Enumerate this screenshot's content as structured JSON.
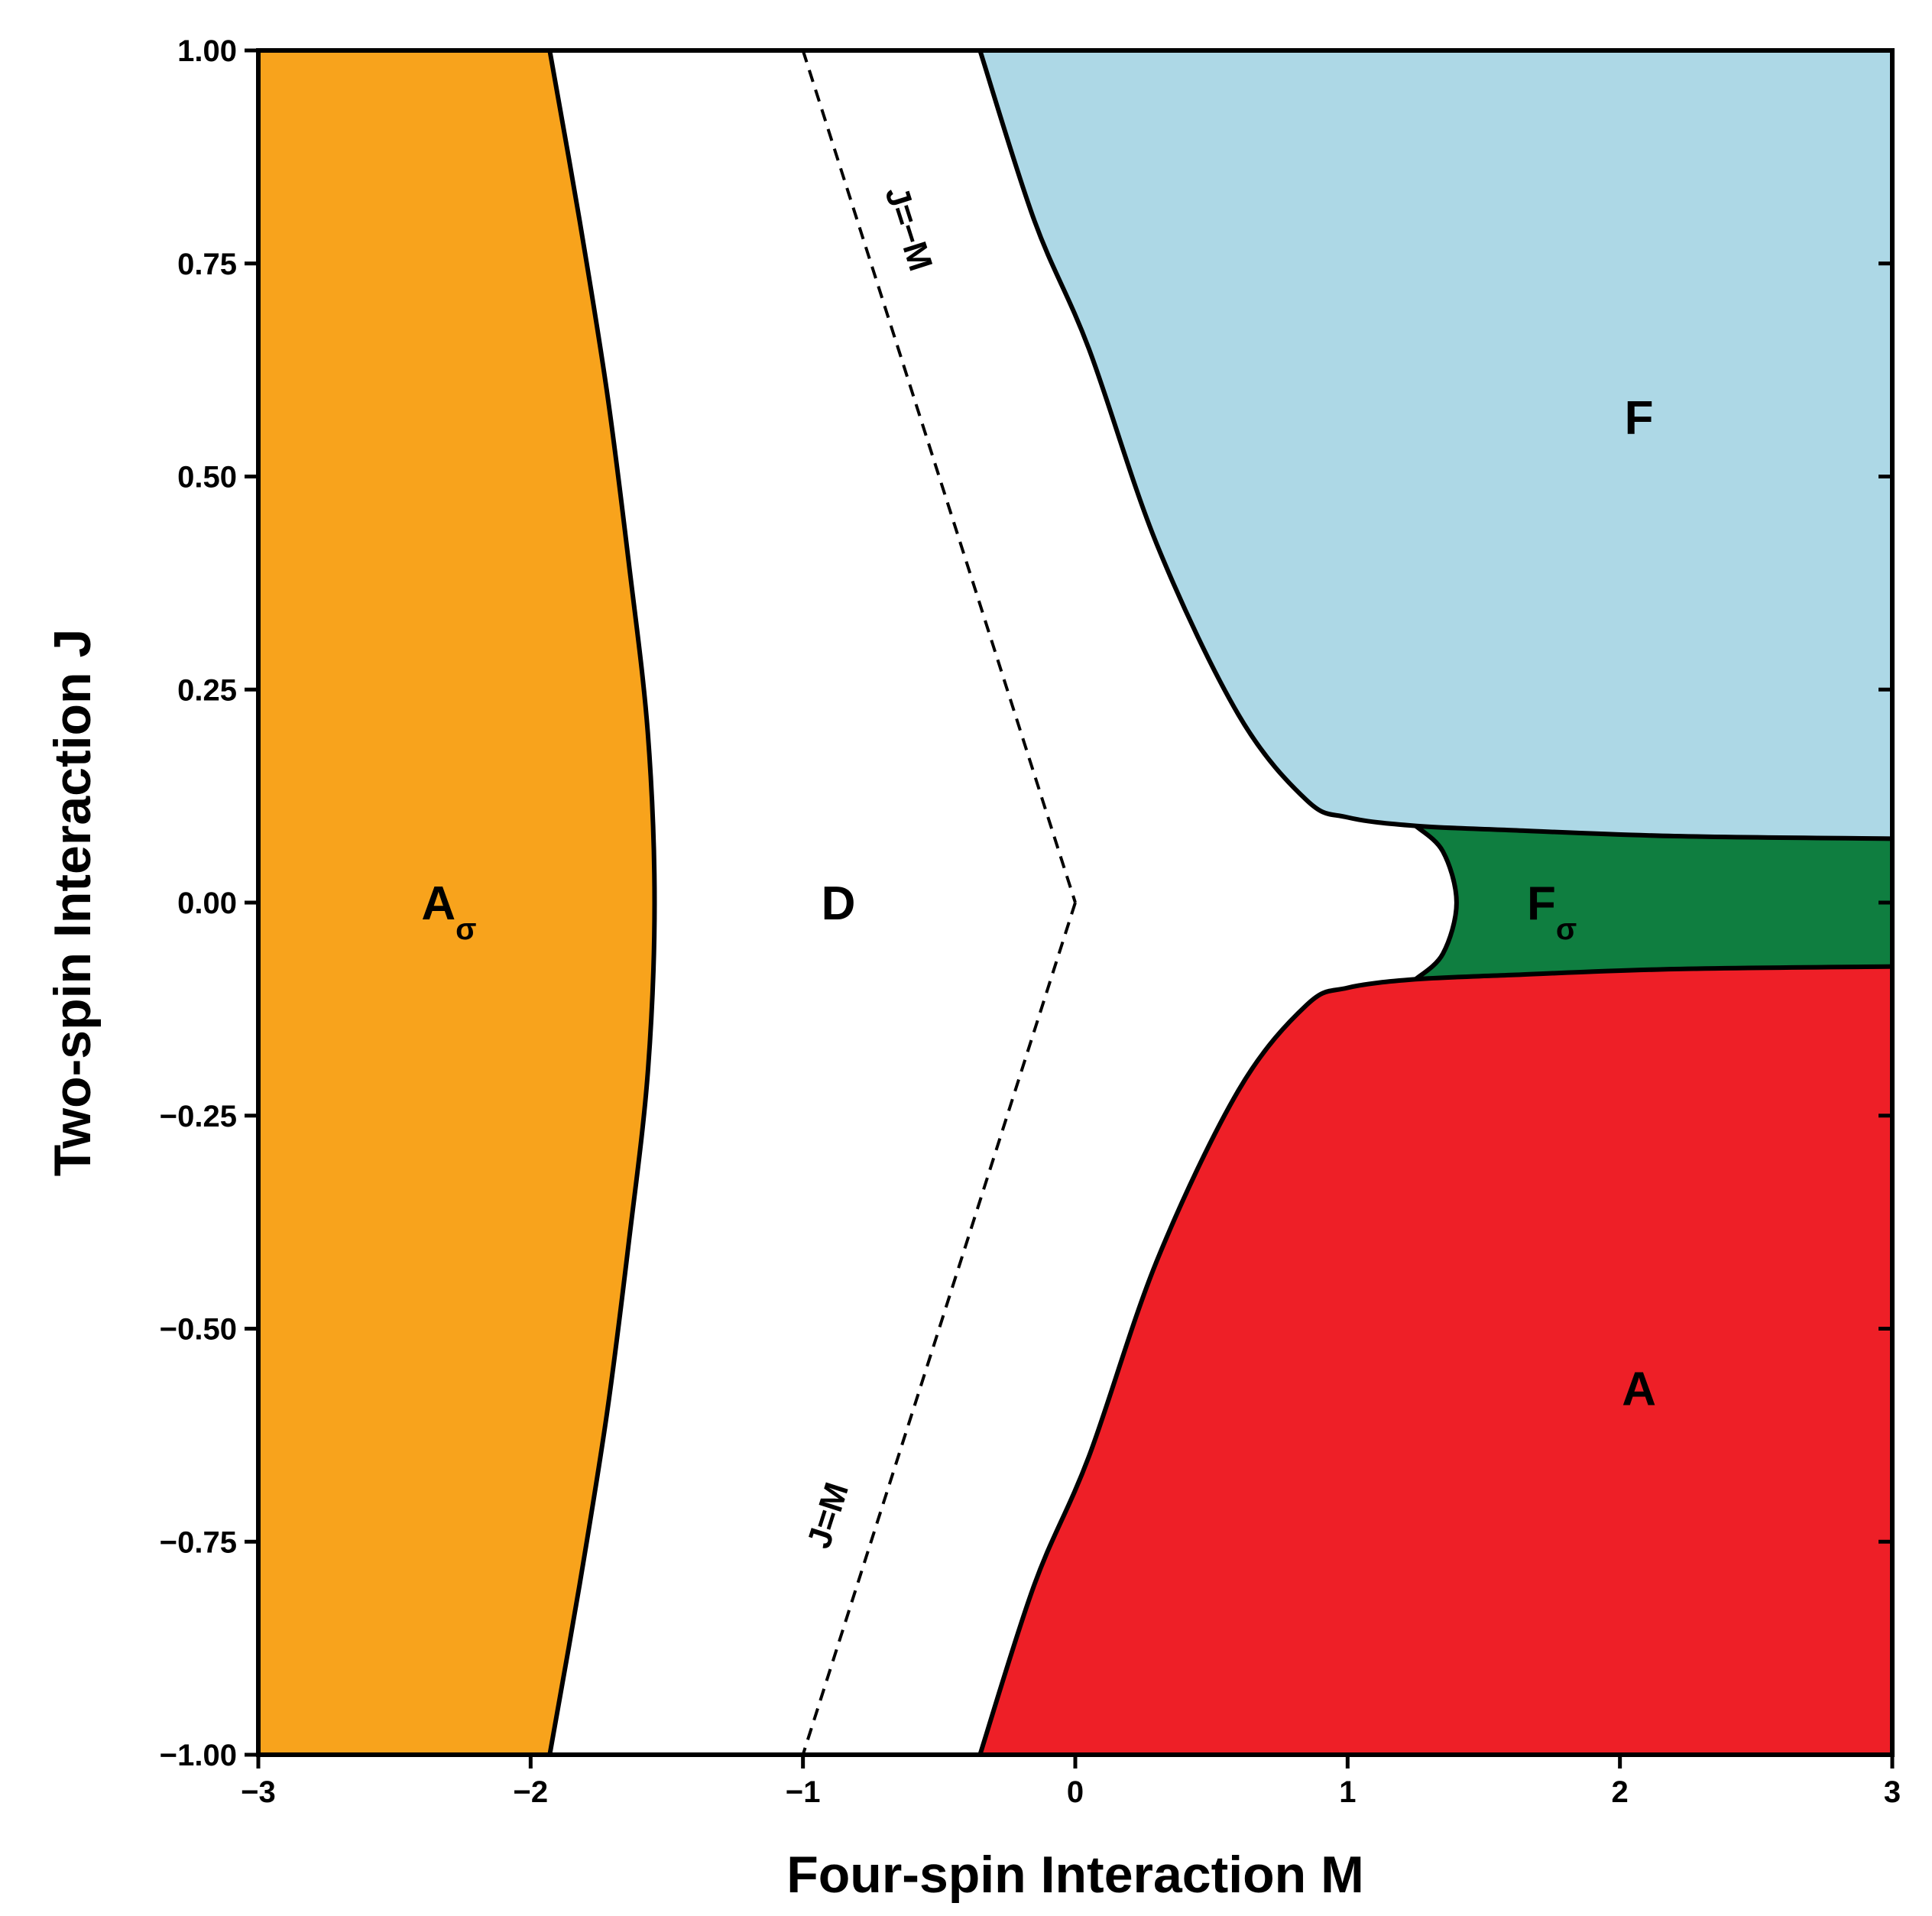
{
  "chart_data": {
    "type": "area",
    "title": "",
    "xlabel": "Four-spin Interaction M",
    "ylabel": "Two-spin Interaction J",
    "xlim": [
      -3,
      3
    ],
    "ylim": [
      -1,
      1
    ],
    "xticks": [
      -3,
      -2,
      -1,
      0,
      1,
      2,
      3
    ],
    "xtick_labels": [
      "−3",
      "−2",
      "−1",
      "0",
      "1",
      "2",
      "3"
    ],
    "yticks": [
      -1,
      -0.75,
      -0.5,
      -0.25,
      0,
      0.25,
      0.5,
      0.75,
      1
    ],
    "ytick_labels": [
      "−1.00",
      "−0.75",
      "−0.50",
      "−0.25",
      "0.00",
      "0.25",
      "0.50",
      "0.75",
      "1.00"
    ],
    "grid": false,
    "regions": [
      {
        "id": "a-sigma",
        "label": "A",
        "subscript": "σ",
        "color": "#F8A31C",
        "label_at": [
          -2.3,
          0.0
        ],
        "boundary": [
          [
            -1.93,
            1.0
          ],
          [
            -1.82,
            0.8
          ],
          [
            -1.72,
            0.6
          ],
          [
            -1.64,
            0.4
          ],
          [
            -1.57,
            0.2
          ],
          [
            -1.545,
            0.0
          ],
          [
            -1.57,
            -0.2
          ],
          [
            -1.64,
            -0.4
          ],
          [
            -1.72,
            -0.6
          ],
          [
            -1.82,
            -0.8
          ],
          [
            -1.93,
            -1.0
          ]
        ]
      },
      {
        "id": "d",
        "label": "D",
        "subscript": "",
        "color": "#FFFFFF",
        "label_at": [
          -0.87,
          0.0
        ],
        "boundary": []
      },
      {
        "id": "f",
        "label": "F",
        "subscript": "",
        "color": "#ADD8E6",
        "label_at": [
          2.07,
          0.57
        ],
        "boundary": [
          [
            -0.35,
            1.0
          ],
          [
            -0.15,
            0.8
          ],
          [
            0.05,
            0.65
          ],
          [
            0.3,
            0.42
          ],
          [
            0.6,
            0.22
          ],
          [
            0.85,
            0.12
          ],
          [
            1.0,
            0.1
          ],
          [
            1.25,
            0.09
          ],
          [
            1.6,
            0.085
          ],
          [
            2.2,
            0.078
          ],
          [
            3.0,
            0.075
          ]
        ]
      },
      {
        "id": "f-sigma",
        "label": "F",
        "subscript": "σ",
        "color": "#0F7E40",
        "label_at": [
          1.75,
          0.0
        ],
        "boundary": [
          [
            1.25,
            0.09
          ],
          [
            1.35,
            0.06
          ],
          [
            1.4,
            0.0
          ],
          [
            1.35,
            -0.06
          ],
          [
            1.25,
            -0.09
          ],
          [
            1.6,
            -0.085
          ],
          [
            2.2,
            -0.078
          ],
          [
            3.0,
            -0.075
          ]
        ]
      },
      {
        "id": "a",
        "label": "A",
        "subscript": "",
        "color": "#EE1F27",
        "label_at": [
          2.07,
          -0.57
        ],
        "boundary": [
          [
            -0.35,
            -1.0
          ],
          [
            -0.15,
            -0.8
          ],
          [
            0.05,
            -0.65
          ],
          [
            0.3,
            -0.42
          ],
          [
            0.6,
            -0.22
          ],
          [
            0.85,
            -0.12
          ],
          [
            1.0,
            -0.1
          ],
          [
            1.25,
            -0.09
          ],
          [
            1.6,
            -0.085
          ],
          [
            2.2,
            -0.078
          ],
          [
            3.0,
            -0.075
          ]
        ]
      }
    ],
    "guide_lines": [
      {
        "id": "upper",
        "label": "J=−M",
        "style": "dashed",
        "points": [
          [
            -1,
            1
          ],
          [
            0,
            0
          ]
        ],
        "label_at": [
          -0.62,
          0.79
        ]
      },
      {
        "id": "lower",
        "label": "J=M",
        "style": "dashed",
        "points": [
          [
            0,
            0
          ],
          [
            -1,
            -1
          ]
        ],
        "label_at": [
          -0.9,
          -0.72
        ]
      }
    ]
  }
}
